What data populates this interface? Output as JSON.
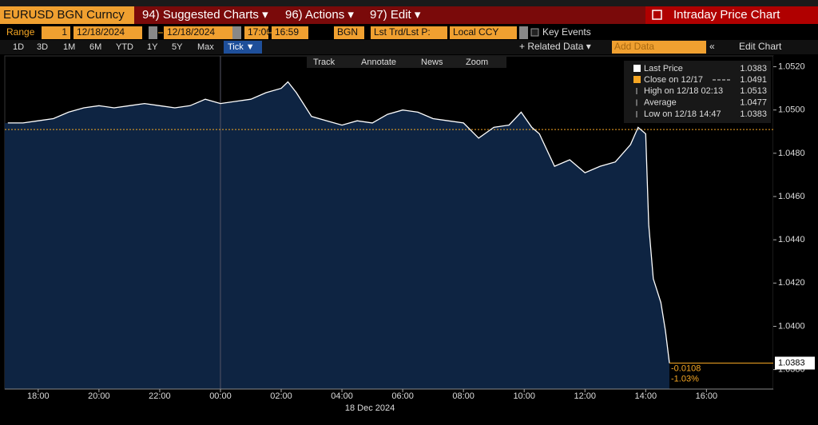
{
  "header": {
    "security": "EURUSD BGN Curncy",
    "menus": [
      "94) Suggested Charts ▾",
      "96) Actions ▾",
      "97) Edit ▾"
    ],
    "title": "Intraday Price Chart"
  },
  "controls": {
    "range_label": "Range",
    "fields": [
      "1",
      "12/18/2024",
      "12/18/2024",
      "17:00",
      "16:59",
      "BGN",
      "Lst Trd/Lst P:",
      "Local CCY"
    ],
    "key_events": "Key Events",
    "add_data": "Add Data",
    "edit_chart": "Edit Chart",
    "periods": [
      "1D",
      "3D",
      "1M",
      "6M",
      "YTD",
      "1Y",
      "5Y",
      "Max"
    ],
    "selected_period": "Tick ▼",
    "related_data": "+ Related Data ▾"
  },
  "tools": [
    "Track",
    "Annotate",
    "News",
    "Zoom"
  ],
  "chart_data": {
    "type": "line",
    "x": [
      0,
      0.5,
      1,
      1.5,
      2,
      2.5,
      3,
      3.5,
      4,
      4.5,
      5,
      5.5,
      6,
      6.5,
      7,
      7.5,
      8,
      8.5,
      9,
      9.22,
      9.5,
      10,
      10.5,
      11,
      11.5,
      12,
      12.5,
      13,
      13.5,
      14,
      14.5,
      15,
      15.5,
      16,
      16.5,
      16.9,
      17.25,
      17.5,
      18,
      18.5,
      19,
      19.5,
      20,
      20.5,
      20.75,
      21,
      21.1,
      21.25,
      21.5,
      21.65,
      21.78
    ],
    "series": [
      {
        "name": "Last Price",
        "color": "#ffffff",
        "values": [
          1.0494,
          1.0494,
          1.0495,
          1.0496,
          1.0499,
          1.0501,
          1.0502,
          1.0501,
          1.0502,
          1.0503,
          1.0502,
          1.0501,
          1.0502,
          1.0505,
          1.0503,
          1.0504,
          1.0505,
          1.0508,
          1.051,
          1.0513,
          1.0508,
          1.0497,
          1.0495,
          1.0493,
          1.0495,
          1.0494,
          1.0498,
          1.05,
          1.0499,
          1.0496,
          1.0495,
          1.0494,
          1.0487,
          1.0492,
          1.0493,
          1.0499,
          1.0492,
          1.0489,
          1.0474,
          1.0477,
          1.0471,
          1.0474,
          1.0476,
          1.0484,
          1.0492,
          1.0489,
          1.0447,
          1.0422,
          1.0411,
          1.0398,
          1.0383
        ]
      }
    ],
    "reference_line": {
      "label": "Close on 12/17",
      "value": 1.0491,
      "color": "#f5a623"
    },
    "legend": [
      {
        "label": "High on 12/18 02:13",
        "value": 1.0513
      },
      {
        "label": "Average",
        "value": 1.0477
      },
      {
        "label": "Low on 12/18 14:47",
        "value": 1.0383
      }
    ],
    "xlabel": "18 Dec 2024",
    "xlim": [
      -0.1,
      25.2
    ],
    "xticks": [
      {
        "value": 1,
        "label": "18:00"
      },
      {
        "value": 3,
        "label": "20:00"
      },
      {
        "value": 5,
        "label": "22:00"
      },
      {
        "value": 7,
        "label": "00:00"
      },
      {
        "value": 9,
        "label": "02:00"
      },
      {
        "value": 11,
        "label": "04:00"
      },
      {
        "value": 13,
        "label": "06:00"
      },
      {
        "value": 15,
        "label": "08:00"
      },
      {
        "value": 17,
        "label": "10:00"
      },
      {
        "value": 19,
        "label": "12:00"
      },
      {
        "value": 21,
        "label": "14:00"
      },
      {
        "value": 23,
        "label": "16:00"
      }
    ],
    "ylim": [
      1.0371,
      1.0525
    ],
    "yticks": [
      {
        "value": 1.052,
        "label": "1.0520"
      },
      {
        "value": 1.05,
        "label": "1.0500"
      },
      {
        "value": 1.048,
        "label": "1.0480"
      },
      {
        "value": 1.046,
        "label": "1.0460"
      },
      {
        "value": 1.044,
        "label": "1.0440"
      },
      {
        "value": 1.042,
        "label": "1.0420"
      },
      {
        "value": 1.04,
        "label": "1.0400"
      },
      {
        "value": 1.038,
        "label": "1.0380"
      }
    ],
    "annotations": {
      "change": "-0.0108",
      "change_pct": "-1.03%"
    }
  }
}
